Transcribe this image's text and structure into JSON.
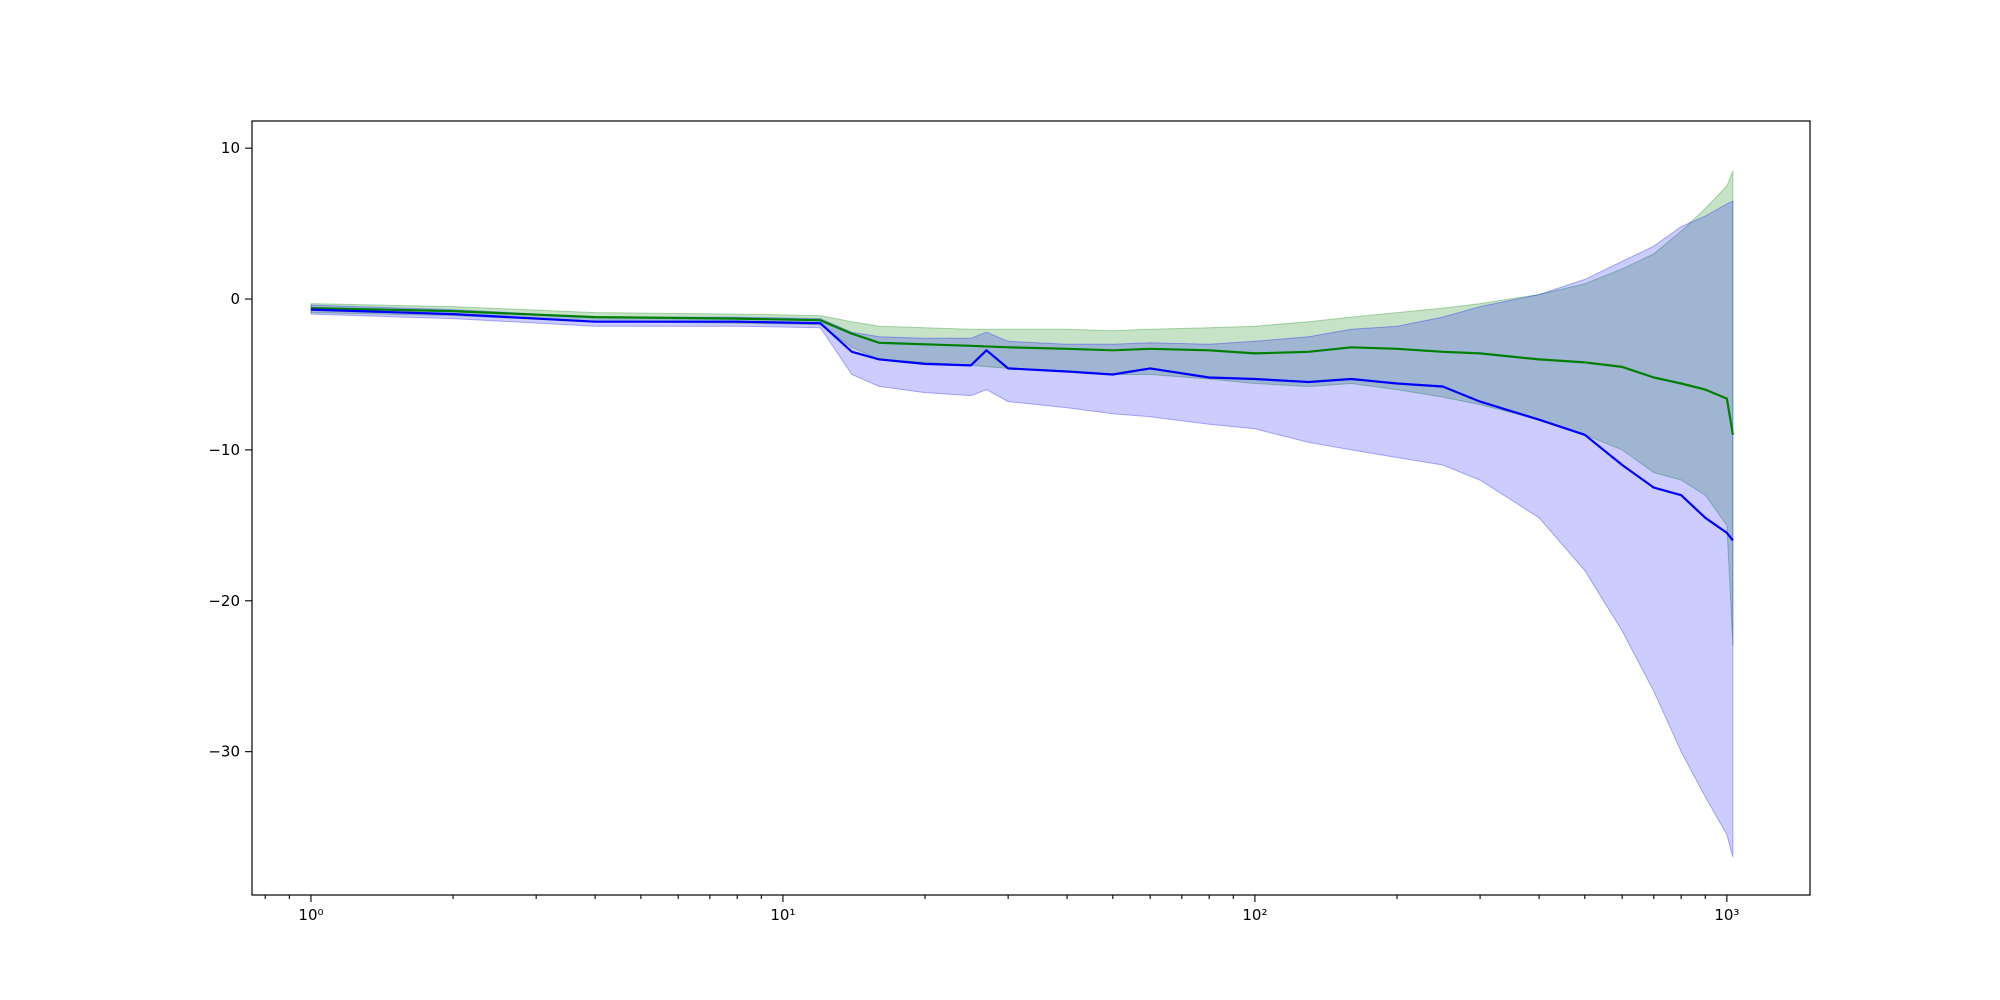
{
  "chart_data": {
    "type": "line",
    "title": "",
    "xlabel": "",
    "ylabel": "",
    "x_scale": "log",
    "xlim": [
      0.75,
      1500
    ],
    "ylim": [
      -39.5,
      11.8
    ],
    "grid": false,
    "legend": "none",
    "x_ticks": [
      {
        "value": 1,
        "label": "10⁰"
      },
      {
        "value": 10,
        "label": "10¹"
      },
      {
        "value": 100,
        "label": "10²"
      },
      {
        "value": 1000,
        "label": "10³"
      }
    ],
    "y_ticks": [
      {
        "value": 10,
        "label": "10"
      },
      {
        "value": 0,
        "label": "0"
      },
      {
        "value": -10,
        "label": "−10"
      },
      {
        "value": -20,
        "label": "−20"
      },
      {
        "value": -30,
        "label": "−30"
      }
    ],
    "series": [
      {
        "color": "#008000",
        "band_color": "#008000",
        "x": [
          1,
          2,
          4,
          8,
          12,
          14,
          16,
          20,
          25,
          30,
          40,
          50,
          60,
          80,
          100,
          130,
          160,
          200,
          250,
          300,
          400,
          500,
          600,
          700,
          800,
          900,
          1000,
          1030
        ],
        "y": [
          -0.6,
          -0.8,
          -1.2,
          -1.3,
          -1.4,
          -2.3,
          -2.9,
          -3.0,
          -3.1,
          -3.2,
          -3.3,
          -3.4,
          -3.3,
          -3.4,
          -3.6,
          -3.5,
          -3.2,
          -3.3,
          -3.5,
          -3.6,
          -4.0,
          -4.2,
          -4.5,
          -5.2,
          -5.6,
          -6.0,
          -6.6,
          -9.0
        ],
        "lower": [
          -0.9,
          -1.1,
          -1.5,
          -1.6,
          -1.7,
          -3.2,
          -4.0,
          -4.2,
          -4.4,
          -4.6,
          -4.8,
          -5.0,
          -5.0,
          -5.3,
          -5.6,
          -5.8,
          -5.6,
          -6.0,
          -6.5,
          -7.0,
          -8.0,
          -9.0,
          -10.0,
          -11.5,
          -12.0,
          -13.0,
          -15.0,
          -23.0
        ],
        "upper": [
          -0.3,
          -0.5,
          -0.9,
          -1.0,
          -1.1,
          -1.5,
          -1.8,
          -1.9,
          -2.0,
          -2.0,
          -2.0,
          -2.1,
          -2.0,
          -1.9,
          -1.8,
          -1.5,
          -1.2,
          -0.9,
          -0.6,
          -0.3,
          0.3,
          1.0,
          2.0,
          3.0,
          4.5,
          6.0,
          7.5,
          8.5
        ]
      },
      {
        "color": "#0000ff",
        "band_color": "#0000ff",
        "x": [
          1,
          2,
          4,
          8,
          12,
          14,
          16,
          20,
          25,
          27,
          30,
          40,
          50,
          60,
          80,
          100,
          130,
          160,
          200,
          250,
          300,
          400,
          500,
          600,
          700,
          800,
          900,
          1000,
          1030
        ],
        "y": [
          -0.7,
          -1.0,
          -1.5,
          -1.5,
          -1.6,
          -3.5,
          -4.0,
          -4.3,
          -4.4,
          -3.4,
          -4.6,
          -4.8,
          -5.0,
          -4.6,
          -5.2,
          -5.3,
          -5.5,
          -5.3,
          -5.6,
          -5.8,
          -6.8,
          -8.0,
          -9.0,
          -11.0,
          -12.5,
          -13.0,
          -14.5,
          -15.5,
          -16.0
        ],
        "lower": [
          -1.0,
          -1.3,
          -1.8,
          -1.8,
          -1.9,
          -5.0,
          -5.8,
          -6.2,
          -6.4,
          -6.0,
          -6.8,
          -7.2,
          -7.6,
          -7.8,
          -8.3,
          -8.6,
          -9.5,
          -10.0,
          -10.5,
          -11.0,
          -12.0,
          -14.5,
          -18.0,
          -22.0,
          -26.0,
          -30.0,
          -33.0,
          -35.5,
          -37.0
        ],
        "upper": [
          -0.4,
          -0.7,
          -1.2,
          -1.2,
          -1.3,
          -2.2,
          -2.5,
          -2.6,
          -2.6,
          -2.2,
          -2.8,
          -3.0,
          -3.0,
          -2.9,
          -3.0,
          -2.8,
          -2.5,
          -2.0,
          -1.8,
          -1.2,
          -0.5,
          0.3,
          1.3,
          2.5,
          3.5,
          4.8,
          5.5,
          6.3,
          6.5
        ]
      }
    ]
  }
}
